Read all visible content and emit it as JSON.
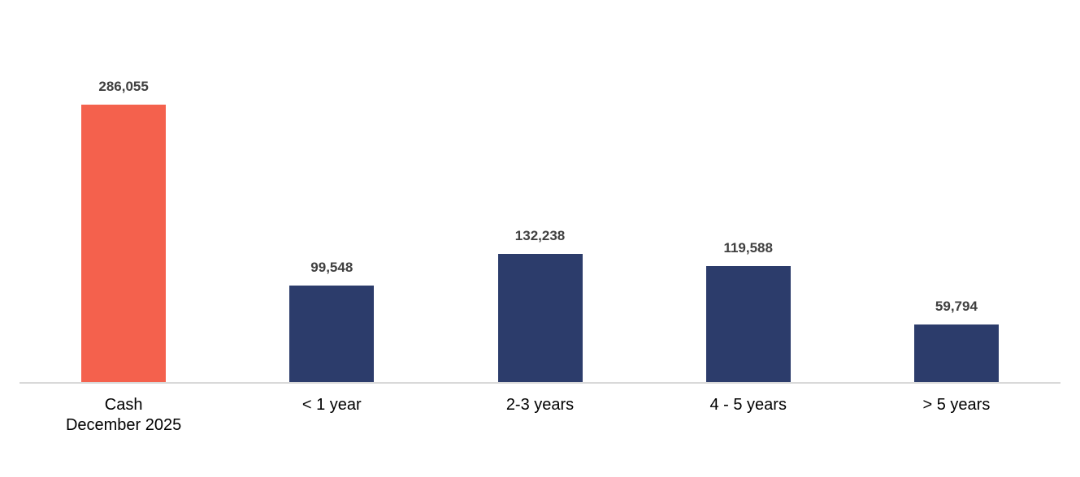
{
  "chart_data": {
    "type": "bar",
    "categories": [
      "Cash\nDecember 2025",
      "< 1 year",
      "2-3 years",
      "4 - 5 years",
      "> 5 years"
    ],
    "values": [
      286055,
      99548,
      132238,
      119588,
      59794
    ],
    "value_labels": [
      "286,055",
      "99,548",
      "132,238",
      "119,588",
      "59,794"
    ],
    "bar_colors": [
      "#F4614D",
      "#2C3C6B",
      "#2C3C6B",
      "#2C3C6B",
      "#2C3C6B"
    ],
    "highlight_color": "#F4614D",
    "default_bar_color": "#2C3C6B",
    "value_label_color": "#404040",
    "category_label_color": "#000000",
    "axis_line_color": "#D9D9D9",
    "background_color": "#FFFFFF",
    "data_labels_visible": true,
    "y_axis_visible": false,
    "gridlines_visible": false,
    "legend_visible": false
  }
}
